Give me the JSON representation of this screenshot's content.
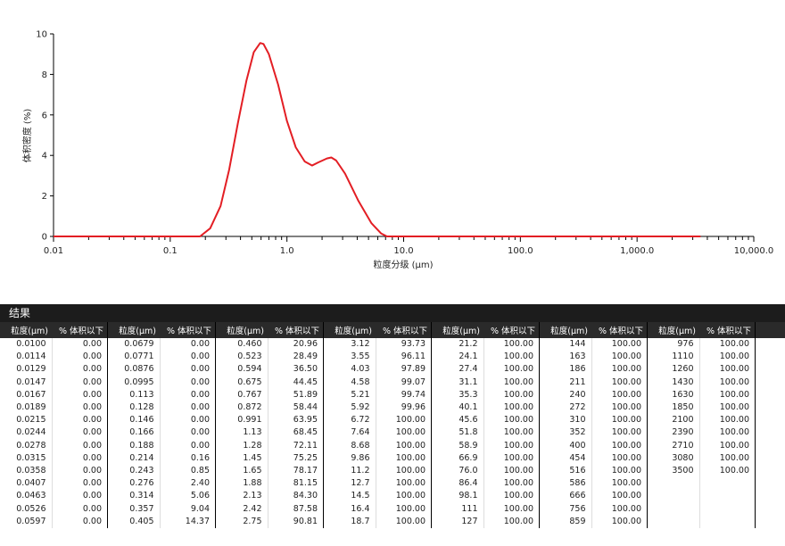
{
  "chart_data": {
    "type": "line",
    "ylabel": "体积密度 (%)",
    "xlabel": "粒度分级 (µm)",
    "log_x": true,
    "color": "#e31e24",
    "x": [
      0.01,
      0.18,
      0.22,
      0.27,
      0.32,
      0.38,
      0.45,
      0.52,
      0.59,
      0.63,
      0.7,
      0.84,
      1.0,
      1.19,
      1.42,
      1.64,
      1.85,
      2.2,
      2.4,
      2.64,
      3.15,
      4.1,
      5.3,
      6.4,
      7.2,
      3500
    ],
    "values": [
      0,
      0,
      0.4,
      1.5,
      3.3,
      5.6,
      7.7,
      9.1,
      9.55,
      9.5,
      9.0,
      7.5,
      5.7,
      4.4,
      3.7,
      3.5,
      3.65,
      3.85,
      3.9,
      3.75,
      3.1,
      1.75,
      0.65,
      0.15,
      0,
      0
    ],
    "xlim": [
      0.01,
      10000
    ],
    "xticks": [
      0.01,
      0.1,
      {
        "value": 1,
        "label": "1.0"
      },
      {
        "value": 10,
        "label": "10.0"
      },
      {
        "value": 100,
        "label": "100.0"
      },
      {
        "value": 1000,
        "label": "1,000.0"
      },
      {
        "value": 10000,
        "label": "10,000.0"
      }
    ],
    "ylim": [
      0,
      10
    ],
    "yticks": [
      0,
      2,
      4,
      6,
      8,
      10
    ]
  },
  "table": {
    "title": "结果",
    "headers": [
      "粒度(µm)",
      "% 体积以下"
    ],
    "groups": [
      {
        "size": [
          "0.0100",
          "0.0114",
          "0.0129",
          "0.0147",
          "0.0167",
          "0.0189",
          "0.0215",
          "0.0244",
          "0.0278",
          "0.0315",
          "0.0358",
          "0.0407",
          "0.0463",
          "0.0526",
          "0.0597"
        ],
        "pct": [
          "0.00",
          "0.00",
          "0.00",
          "0.00",
          "0.00",
          "0.00",
          "0.00",
          "0.00",
          "0.00",
          "0.00",
          "0.00",
          "0.00",
          "0.00",
          "0.00",
          "0.00"
        ]
      },
      {
        "size": [
          "0.0679",
          "0.0771",
          "0.0876",
          "0.0995",
          "0.113",
          "0.128",
          "0.146",
          "0.166",
          "0.188",
          "0.214",
          "0.243",
          "0.276",
          "0.314",
          "0.357",
          "0.405"
        ],
        "pct": [
          "0.00",
          "0.00",
          "0.00",
          "0.00",
          "0.00",
          "0.00",
          "0.00",
          "0.00",
          "0.00",
          "0.16",
          "0.85",
          "2.40",
          "5.06",
          "9.04",
          "14.37"
        ]
      },
      {
        "size": [
          "0.460",
          "0.523",
          "0.594",
          "0.675",
          "0.767",
          "0.872",
          "0.991",
          "1.13",
          "1.28",
          "1.45",
          "1.65",
          "1.88",
          "2.13",
          "2.42",
          "2.75"
        ],
        "pct": [
          "20.96",
          "28.49",
          "36.50",
          "44.45",
          "51.89",
          "58.44",
          "63.95",
          "68.45",
          "72.11",
          "75.25",
          "78.17",
          "81.15",
          "84.30",
          "87.58",
          "90.81"
        ]
      },
      {
        "size": [
          "3.12",
          "3.55",
          "4.03",
          "4.58",
          "5.21",
          "5.92",
          "6.72",
          "7.64",
          "8.68",
          "9.86",
          "11.2",
          "12.7",
          "14.5",
          "16.4",
          "18.7"
        ],
        "pct": [
          "93.73",
          "96.11",
          "97.89",
          "99.07",
          "99.74",
          "99.96",
          "100.00",
          "100.00",
          "100.00",
          "100.00",
          "100.00",
          "100.00",
          "100.00",
          "100.00",
          "100.00"
        ]
      },
      {
        "size": [
          "21.2",
          "24.1",
          "27.4",
          "31.1",
          "35.3",
          "40.1",
          "45.6",
          "51.8",
          "58.9",
          "66.9",
          "76.0",
          "86.4",
          "98.1",
          "111",
          "127"
        ],
        "pct": [
          "100.00",
          "100.00",
          "100.00",
          "100.00",
          "100.00",
          "100.00",
          "100.00",
          "100.00",
          "100.00",
          "100.00",
          "100.00",
          "100.00",
          "100.00",
          "100.00",
          "100.00"
        ]
      },
      {
        "size": [
          "144",
          "163",
          "186",
          "211",
          "240",
          "272",
          "310",
          "352",
          "400",
          "454",
          "516",
          "586",
          "666",
          "756",
          "859"
        ],
        "pct": [
          "100.00",
          "100.00",
          "100.00",
          "100.00",
          "100.00",
          "100.00",
          "100.00",
          "100.00",
          "100.00",
          "100.00",
          "100.00",
          "100.00",
          "100.00",
          "100.00",
          "100.00"
        ]
      },
      {
        "size": [
          "976",
          "1110",
          "1260",
          "1430",
          "1630",
          "1850",
          "2100",
          "2390",
          "2710",
          "3080",
          "3500"
        ],
        "pct": [
          "100.00",
          "100.00",
          "100.00",
          "100.00",
          "100.00",
          "100.00",
          "100.00",
          "100.00",
          "100.00",
          "100.00",
          "100.00"
        ]
      }
    ]
  }
}
